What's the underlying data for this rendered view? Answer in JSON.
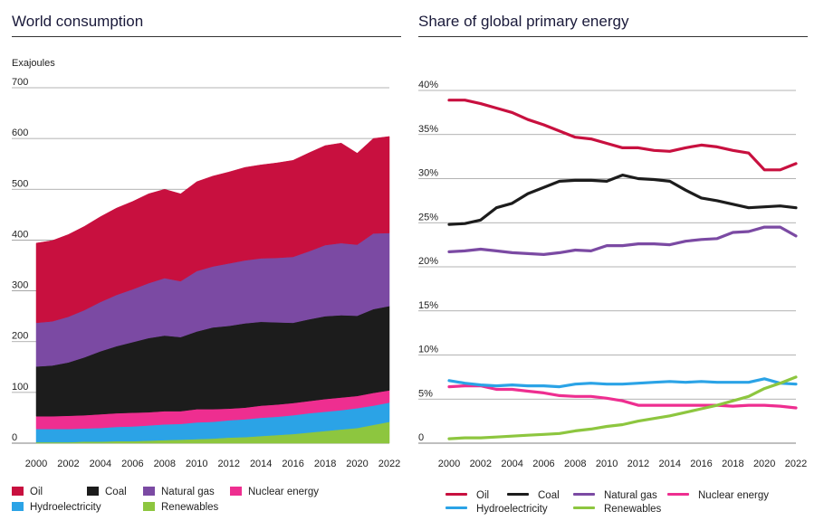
{
  "left_title": "World consumption",
  "right_title": "Share of global primary energy",
  "chart_data": [
    {
      "type": "area",
      "stacked": true,
      "title": "World consumption",
      "ylabel": "Exajoules",
      "ylim": [
        0,
        700
      ],
      "yticks": [
        0,
        100,
        200,
        300,
        400,
        500,
        600,
        700
      ],
      "xlim": [
        2000,
        2022
      ],
      "xticks": [
        2000,
        2002,
        2004,
        2006,
        2008,
        2010,
        2012,
        2014,
        2016,
        2018,
        2020,
        2022
      ],
      "x": [
        2000,
        2001,
        2002,
        2003,
        2004,
        2005,
        2006,
        2007,
        2008,
        2009,
        2010,
        2011,
        2012,
        2013,
        2014,
        2015,
        2016,
        2017,
        2018,
        2019,
        2020,
        2021,
        2022
      ],
      "grid": true,
      "legend_position": "bottom",
      "series": [
        {
          "name": "Renewables",
          "color": "#8dc63f",
          "values": [
            2,
            2,
            2,
            3,
            3,
            4,
            4,
            5,
            6,
            7,
            8,
            9,
            11,
            12,
            14,
            16,
            18,
            21,
            24,
            27,
            30,
            36,
            42
          ]
        },
        {
          "name": "Hydroelectricity",
          "color": "#2ba3e6",
          "values": [
            26,
            26,
            26,
            26,
            27,
            28,
            29,
            30,
            31,
            31,
            33,
            33,
            34,
            35,
            36,
            36,
            37,
            38,
            38,
            38,
            39,
            38,
            38
          ]
        },
        {
          "name": "Nuclear energy",
          "color": "#ee2e90",
          "values": [
            25,
            25,
            26,
            26,
            27,
            27,
            27,
            26,
            26,
            25,
            26,
            25,
            23,
            23,
            24,
            24,
            24,
            24,
            25,
            25,
            24,
            25,
            24
          ]
        },
        {
          "name": "Coal",
          "color": "#1c1c1c",
          "values": [
            98,
            100,
            105,
            114,
            124,
            132,
            139,
            146,
            149,
            146,
            153,
            161,
            163,
            166,
            165,
            162,
            158,
            161,
            163,
            162,
            158,
            165,
            166
          ]
        },
        {
          "name": "Natural gas",
          "color": "#7b4aa3",
          "values": [
            86,
            87,
            90,
            93,
            97,
            101,
            104,
            108,
            113,
            110,
            119,
            120,
            123,
            124,
            125,
            127,
            130,
            134,
            140,
            142,
            140,
            149,
            144
          ]
        },
        {
          "name": "Oil",
          "color": "#c8103f",
          "values": [
            157,
            159,
            162,
            165,
            168,
            171,
            173,
            176,
            175,
            172,
            176,
            178,
            180,
            183,
            184,
            187,
            190,
            194,
            196,
            197,
            180,
            187,
            190
          ]
        }
      ]
    },
    {
      "type": "line",
      "title": "Share of global primary energy",
      "ylim": [
        0,
        40
      ],
      "yticks": [
        0,
        5,
        10,
        15,
        20,
        25,
        30,
        35,
        40
      ],
      "ytick_labels": [
        "0",
        "5%",
        "10%",
        "15%",
        "20%",
        "25%",
        "30%",
        "35%",
        "40%"
      ],
      "xlim": [
        2000,
        2022
      ],
      "xticks": [
        2000,
        2002,
        2004,
        2006,
        2008,
        2010,
        2012,
        2014,
        2016,
        2018,
        2020,
        2022
      ],
      "x": [
        2000,
        2001,
        2002,
        2003,
        2004,
        2005,
        2006,
        2007,
        2008,
        2009,
        2010,
        2011,
        2012,
        2013,
        2014,
        2015,
        2016,
        2017,
        2018,
        2019,
        2020,
        2021,
        2022
      ],
      "grid": true,
      "legend_position": "bottom",
      "series": [
        {
          "name": "Oil",
          "color": "#c8103f",
          "values": [
            38.9,
            38.9,
            38.5,
            38.0,
            37.5,
            36.7,
            36.1,
            35.4,
            34.7,
            34.5,
            34.0,
            33.5,
            33.5,
            33.2,
            33.1,
            33.5,
            33.8,
            33.6,
            33.2,
            32.9,
            31.0,
            31.0,
            31.7
          ]
        },
        {
          "name": "Coal",
          "color": "#1c1c1c",
          "values": [
            24.8,
            24.9,
            25.3,
            26.7,
            27.2,
            28.3,
            29.0,
            29.7,
            29.8,
            29.8,
            29.7,
            30.4,
            30.0,
            29.9,
            29.7,
            28.7,
            27.8,
            27.5,
            27.1,
            26.7,
            26.8,
            26.9,
            26.7
          ]
        },
        {
          "name": "Natural gas",
          "color": "#7b4aa3",
          "values": [
            21.7,
            21.8,
            22.0,
            21.8,
            21.6,
            21.5,
            21.4,
            21.6,
            21.9,
            21.8,
            22.4,
            22.4,
            22.6,
            22.6,
            22.5,
            22.9,
            23.1,
            23.2,
            23.9,
            24.0,
            24.5,
            24.5,
            23.5
          ]
        },
        {
          "name": "Nuclear energy",
          "color": "#ee2e90",
          "values": [
            6.4,
            6.5,
            6.5,
            6.1,
            6.1,
            5.9,
            5.7,
            5.4,
            5.3,
            5.3,
            5.1,
            4.8,
            4.3,
            4.3,
            4.3,
            4.3,
            4.3,
            4.3,
            4.2,
            4.3,
            4.3,
            4.2,
            4.0
          ]
        },
        {
          "name": "Hydroelectricity",
          "color": "#2ba3e6",
          "values": [
            7.1,
            6.8,
            6.6,
            6.5,
            6.6,
            6.5,
            6.5,
            6.4,
            6.7,
            6.8,
            6.7,
            6.7,
            6.8,
            6.9,
            7.0,
            6.9,
            7.0,
            6.9,
            6.9,
            6.9,
            7.3,
            6.8,
            6.7
          ]
        },
        {
          "name": "Renewables",
          "color": "#8dc63f",
          "values": [
            0.5,
            0.6,
            0.6,
            0.7,
            0.8,
            0.9,
            1.0,
            1.1,
            1.4,
            1.6,
            1.9,
            2.1,
            2.5,
            2.8,
            3.1,
            3.5,
            3.9,
            4.3,
            4.8,
            5.3,
            6.2,
            6.8,
            7.5
          ]
        }
      ]
    }
  ],
  "left_legend": [
    {
      "name": "Oil",
      "color": "#c8103f"
    },
    {
      "name": "Coal",
      "color": "#1c1c1c"
    },
    {
      "name": "Natural gas",
      "color": "#7b4aa3"
    },
    {
      "name": "Nuclear energy",
      "color": "#ee2e90"
    },
    {
      "name": "Hydroelectricity",
      "color": "#2ba3e6"
    },
    {
      "name": "Renewables",
      "color": "#8dc63f"
    }
  ],
  "right_legend": [
    {
      "name": "Oil",
      "color": "#c8103f"
    },
    {
      "name": "Coal",
      "color": "#1c1c1c"
    },
    {
      "name": "Natural gas",
      "color": "#7b4aa3"
    },
    {
      "name": "Nuclear energy",
      "color": "#ee2e90"
    },
    {
      "name": "Hydroelectricity",
      "color": "#2ba3e6"
    },
    {
      "name": "Renewables",
      "color": "#8dc63f"
    }
  ]
}
